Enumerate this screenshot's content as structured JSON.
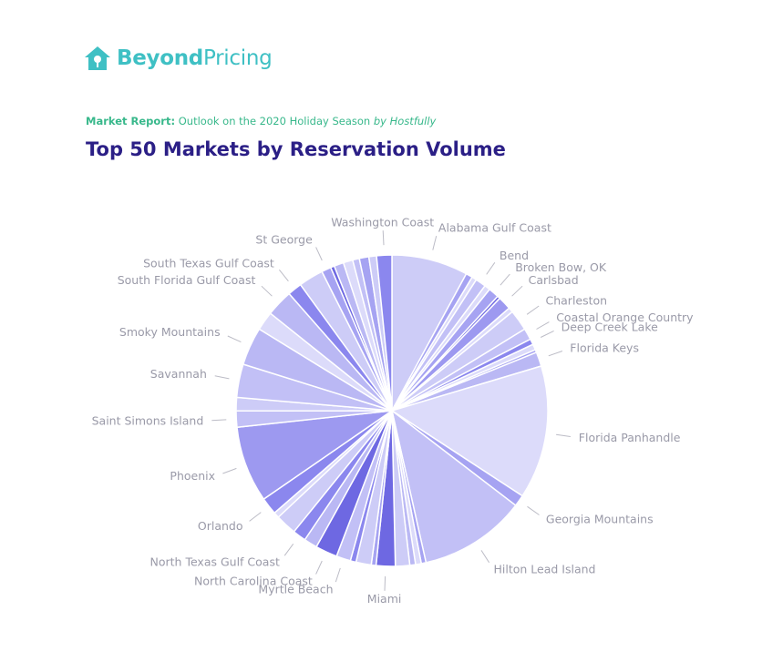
{
  "brand": {
    "name_part1": "Beyond",
    "name_part2": "Pricing",
    "logo_icon": "house-icon",
    "color": "#3fc0c4"
  },
  "header": {
    "report_label": "Market Report:",
    "report_text": "Outlook on the 2020 Holiday Season",
    "report_by": "by Hostfully",
    "title": "Top 50 Markets by Reservation Volume"
  },
  "colors": {
    "subtitle": "#38b88b",
    "title": "#2b1f86",
    "label": "#9a9aa8",
    "palette": [
      "#cdccf7",
      "#bab8f4",
      "#a6a3f2",
      "#dcdbfa",
      "#8b87ee",
      "#6e68e2",
      "#c2c0f6",
      "#9d99f0"
    ]
  },
  "chart_data": {
    "type": "pie",
    "title": "Top 50 Markets by Reservation Volume",
    "slices": [
      {
        "label": "Alabama Gulf Coast",
        "value": 8.0,
        "shade": 0
      },
      {
        "label": "",
        "value": 0.7,
        "shade": 2
      },
      {
        "label": "",
        "value": 0.5,
        "shade": 3
      },
      {
        "label": "Bend",
        "value": 1.1,
        "shade": 6
      },
      {
        "label": "",
        "value": 0.6,
        "shade": 3
      },
      {
        "label": "Broken Bow, OK",
        "value": 1.1,
        "shade": 2
      },
      {
        "label": "",
        "value": 0.3,
        "shade": 5
      },
      {
        "label": "Carlsbad",
        "value": 1.4,
        "shade": 7
      },
      {
        "label": "",
        "value": 0.5,
        "shade": 3
      },
      {
        "label": "Charleston",
        "value": 2.2,
        "shade": 0
      },
      {
        "label": "Coastal Orange Country",
        "value": 1.2,
        "shade": 6
      },
      {
        "label": "Deep Creek Lake",
        "value": 0.6,
        "shade": 4
      },
      {
        "label": "",
        "value": 0.6,
        "shade": 3
      },
      {
        "label": "",
        "value": 0.3,
        "shade": 2
      },
      {
        "label": "Florida Keys",
        "value": 1.5,
        "shade": 1
      },
      {
        "label": "Florida Panhandle",
        "value": 14.0,
        "shade": 3
      },
      {
        "label": "Georgia Mountains",
        "value": 1.2,
        "shade": 2
      },
      {
        "label": "Hilton Lead Island",
        "value": 11.2,
        "shade": 6
      },
      {
        "label": "",
        "value": 0.5,
        "shade": 2
      },
      {
        "label": "",
        "value": 0.6,
        "shade": 3
      },
      {
        "label": "",
        "value": 0.6,
        "shade": 1
      },
      {
        "label": "",
        "value": 1.5,
        "shade": 0
      },
      {
        "label": "Miami",
        "value": 2.0,
        "shade": 5
      },
      {
        "label": "",
        "value": 0.5,
        "shade": 2
      },
      {
        "label": "",
        "value": 1.6,
        "shade": 0
      },
      {
        "label": "",
        "value": 0.6,
        "shade": 4
      },
      {
        "label": "Myrtle Beach",
        "value": 1.5,
        "shade": 6
      },
      {
        "label": "North Carolina Coast",
        "value": 2.3,
        "shade": 5
      },
      {
        "label": "",
        "value": 1.4,
        "shade": 1
      },
      {
        "label": "North Texas Gulf Coast",
        "value": 1.4,
        "shade": 4
      },
      {
        "label": "",
        "value": 2.2,
        "shade": 0
      },
      {
        "label": "",
        "value": 0.6,
        "shade": 3
      },
      {
        "label": "Orlando",
        "value": 1.8,
        "shade": 4
      },
      {
        "label": "Phoenix",
        "value": 8.0,
        "shade": 7
      },
      {
        "label": "Saint Simons Island",
        "value": 1.7,
        "shade": 6
      },
      {
        "label": "",
        "value": 1.4,
        "shade": 0
      },
      {
        "label": "Savannah",
        "value": 3.5,
        "shade": 6
      },
      {
        "label": "Smoky Mountains",
        "value": 4.0,
        "shade": 1
      },
      {
        "label": "",
        "value": 2.0,
        "shade": 3
      },
      {
        "label": "South Florida Gulf Coast",
        "value": 2.8,
        "shade": 1
      },
      {
        "label": "South Texas Gulf Coast",
        "value": 1.5,
        "shade": 4
      },
      {
        "label": "",
        "value": 2.6,
        "shade": 0
      },
      {
        "label": "St George",
        "value": 1.0,
        "shade": 2
      },
      {
        "label": "",
        "value": 0.4,
        "shade": 5
      },
      {
        "label": "",
        "value": 1.0,
        "shade": 1
      },
      {
        "label": "",
        "value": 1.0,
        "shade": 3
      },
      {
        "label": "",
        "value": 0.7,
        "shade": 6
      },
      {
        "label": "",
        "value": 1.0,
        "shade": 2
      },
      {
        "label": "",
        "value": 0.8,
        "shade": 0
      },
      {
        "label": "Washington Coast",
        "value": 1.6,
        "shade": 4
      }
    ]
  }
}
